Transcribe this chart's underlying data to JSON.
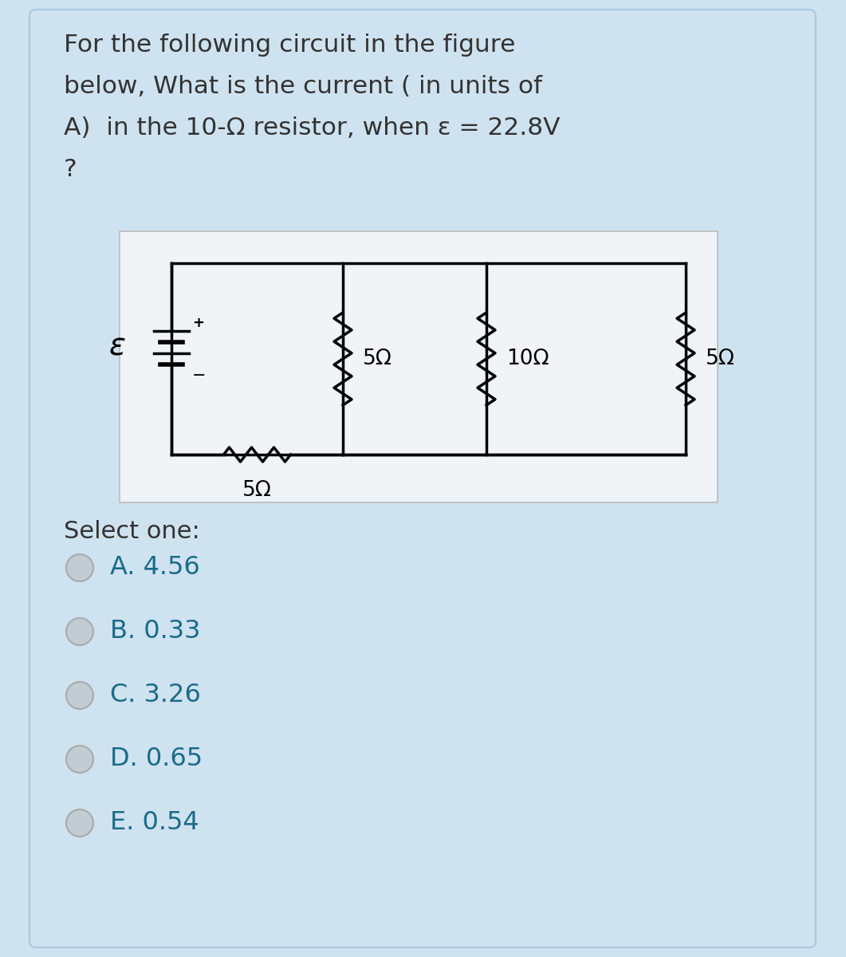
{
  "bg_color": "#cfe2f0",
  "card_bg": "#cfe2f0",
  "circuit_bg": "#f0f4f7",
  "question_text_lines": [
    "For the following circuit in the figure",
    "below, What is the current ( in units of",
    "A)  in the 10-Ω resistor, when ε = 22.8V",
    "?"
  ],
  "select_one_label": "Select one:",
  "options": [
    "A. 4.56",
    "B. 0.33",
    "C. 3.26",
    "D. 0.65",
    "E. 0.54"
  ],
  "resistor_labels": [
    "5Ω",
    "10Ω",
    "5Ω"
  ],
  "bottom_resistor_label": "5Ω",
  "epsilon_label": "ε",
  "text_color": "#333333",
  "option_text_color": "#1a6b8a",
  "radio_fill": "#c0cdd4",
  "radio_border": "#aaaaaa",
  "circuit_line_color": "#000000",
  "circuit_lw": 2.5
}
